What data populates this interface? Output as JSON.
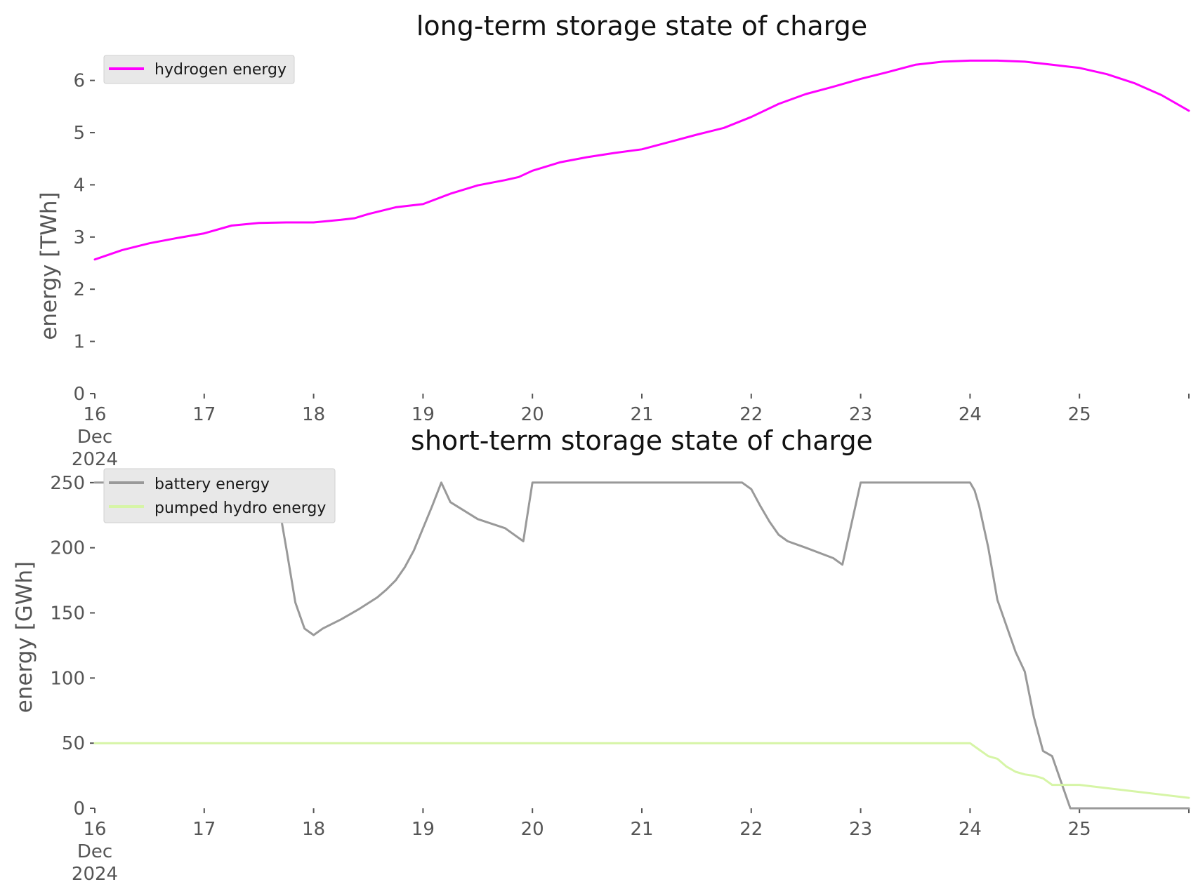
{
  "chart_data": [
    {
      "type": "line",
      "title": "long-term storage state of charge",
      "ylabel": "energy [TWh]",
      "xlabel": "",
      "ylim": [
        0,
        6.6
      ],
      "yticks": [
        0,
        1,
        2,
        3,
        4,
        5,
        6
      ],
      "xlim": [
        "2024-12-16",
        "2024-12-26"
      ],
      "xtick_labels": [
        [
          "16",
          "Dec",
          "2024"
        ],
        [
          "17"
        ],
        [
          "18"
        ],
        [
          "19"
        ],
        [
          "20"
        ],
        [
          "21"
        ],
        [
          "22"
        ],
        [
          "23"
        ],
        [
          "24"
        ],
        [
          "25"
        ]
      ],
      "grid": false,
      "legend_position": "top-left",
      "series": [
        {
          "name": "hydrogen energy",
          "color": "#ff00ff",
          "x": [
            "2024-12-16 00:00",
            "2024-12-16 06:00",
            "2024-12-16 12:00",
            "2024-12-16 18:00",
            "2024-12-17 00:00",
            "2024-12-17 06:00",
            "2024-12-17 12:00",
            "2024-12-17 18:00",
            "2024-12-18 00:00",
            "2024-12-18 06:00",
            "2024-12-18 09:00",
            "2024-12-18 12:00",
            "2024-12-18 18:00",
            "2024-12-19 00:00",
            "2024-12-19 06:00",
            "2024-12-19 12:00",
            "2024-12-19 18:00",
            "2024-12-19 21:00",
            "2024-12-20 00:00",
            "2024-12-20 06:00",
            "2024-12-20 12:00",
            "2024-12-20 18:00",
            "2024-12-21 00:00",
            "2024-12-21 06:00",
            "2024-12-21 12:00",
            "2024-12-21 18:00",
            "2024-12-22 00:00",
            "2024-12-22 06:00",
            "2024-12-22 12:00",
            "2024-12-22 18:00",
            "2024-12-23 00:00",
            "2024-12-23 06:00",
            "2024-12-23 12:00",
            "2024-12-23 18:00",
            "2024-12-24 00:00",
            "2024-12-24 06:00",
            "2024-12-24 12:00",
            "2024-12-24 18:00",
            "2024-12-25 00:00",
            "2024-12-25 06:00",
            "2024-12-25 12:00",
            "2024-12-25 18:00",
            "2024-12-26 00:00"
          ],
          "values": [
            2.57,
            2.75,
            2.88,
            2.98,
            3.07,
            3.22,
            3.27,
            3.28,
            3.28,
            3.33,
            3.36,
            3.44,
            3.57,
            3.63,
            3.83,
            3.99,
            4.09,
            4.15,
            4.27,
            4.43,
            4.53,
            4.61,
            4.68,
            4.82,
            4.96,
            5.09,
            5.3,
            5.55,
            5.74,
            5.88,
            6.03,
            6.16,
            6.3,
            6.36,
            6.38,
            6.38,
            6.36,
            6.3,
            6.24,
            6.12,
            5.95,
            5.72,
            5.42
          ]
        }
      ]
    },
    {
      "type": "line",
      "title": "short-term storage state of charge",
      "ylabel": "energy [GWh]",
      "xlabel": "",
      "ylim": [
        0,
        265
      ],
      "yticks": [
        0,
        50,
        100,
        150,
        200,
        250
      ],
      "xlim": [
        "2024-12-16",
        "2024-12-26"
      ],
      "xtick_labels": [
        [
          "16",
          "Dec",
          "2024"
        ],
        [
          "17"
        ],
        [
          "18"
        ],
        [
          "19"
        ],
        [
          "20"
        ],
        [
          "21"
        ],
        [
          "22"
        ],
        [
          "23"
        ],
        [
          "24"
        ],
        [
          "25"
        ]
      ],
      "grid": false,
      "legend_position": "top-left",
      "series": [
        {
          "name": "battery energy",
          "color": "#999999",
          "x": [
            "2024-12-16 00:00",
            "2024-12-17 14:00",
            "2024-12-17 16:00",
            "2024-12-17 18:00",
            "2024-12-17 20:00",
            "2024-12-17 22:00",
            "2024-12-18 00:00",
            "2024-12-18 02:00",
            "2024-12-18 06:00",
            "2024-12-18 10:00",
            "2024-12-18 14:00",
            "2024-12-18 16:00",
            "2024-12-18 18:00",
            "2024-12-18 20:00",
            "2024-12-18 22:00",
            "2024-12-19 00:00",
            "2024-12-19 02:00",
            "2024-12-19 04:00",
            "2024-12-19 06:00",
            "2024-12-19 12:00",
            "2024-12-19 18:00",
            "2024-12-19 22:00",
            "2024-12-20 00:00",
            "2024-12-21 00:00",
            "2024-12-21 22:00",
            "2024-12-22 00:00",
            "2024-12-22 02:00",
            "2024-12-22 04:00",
            "2024-12-22 06:00",
            "2024-12-22 08:00",
            "2024-12-22 12:00",
            "2024-12-22 18:00",
            "2024-12-22 20:00",
            "2024-12-23 00:00",
            "2024-12-24 00:00",
            "2024-12-24 01:00",
            "2024-12-24 02:00",
            "2024-12-24 04:00",
            "2024-12-24 06:00",
            "2024-12-24 08:00",
            "2024-12-24 10:00",
            "2024-12-24 12:00",
            "2024-12-24 14:00",
            "2024-12-24 16:00",
            "2024-12-24 18:00",
            "2024-12-24 20:00",
            "2024-12-24 22:00",
            "2024-12-25 00:00",
            "2024-12-26 00:00"
          ],
          "values": [
            250,
            250,
            240,
            200,
            158,
            138,
            133,
            138,
            145,
            153,
            162,
            168,
            175,
            185,
            198,
            215,
            232,
            250,
            235,
            222,
            215,
            205,
            250,
            250,
            250,
            245,
            232,
            220,
            210,
            205,
            200,
            192,
            187,
            250,
            250,
            244,
            232,
            200,
            160,
            140,
            120,
            105,
            70,
            44,
            40,
            20,
            0,
            0,
            0
          ]
        },
        {
          "name": "pumped hydro energy",
          "color": "#d6f5a6",
          "x": [
            "2024-12-16 00:00",
            "2024-12-24 00:00",
            "2024-12-24 02:00",
            "2024-12-24 04:00",
            "2024-12-24 06:00",
            "2024-12-24 08:00",
            "2024-12-24 10:00",
            "2024-12-24 12:00",
            "2024-12-24 14:00",
            "2024-12-24 16:00",
            "2024-12-24 18:00",
            "2024-12-24 22:00",
            "2024-12-25 00:00",
            "2024-12-26 00:00"
          ],
          "values": [
            50,
            50,
            45,
            40,
            38,
            32,
            28,
            26,
            25,
            23,
            18,
            18,
            18,
            8
          ]
        }
      ]
    }
  ]
}
